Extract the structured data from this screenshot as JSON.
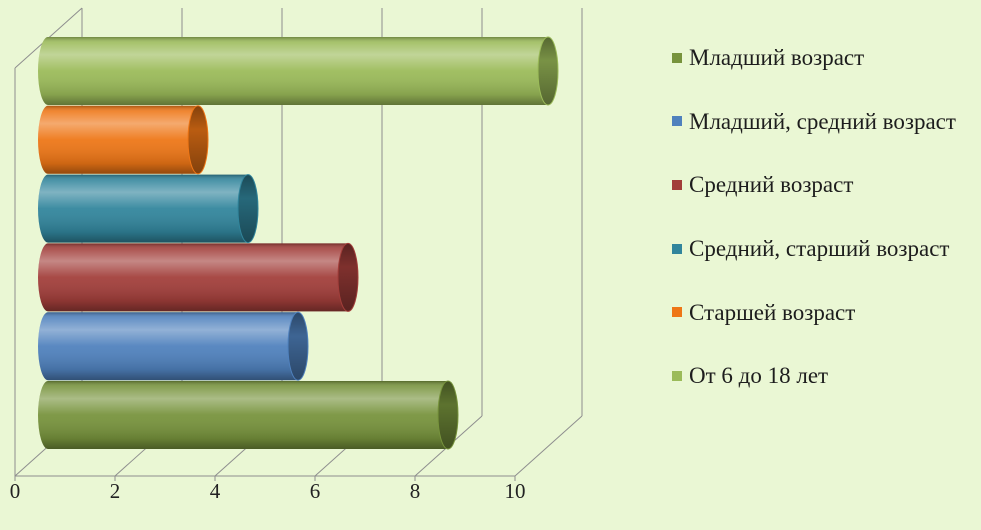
{
  "chart_data": {
    "type": "bar",
    "orientation": "horizontal",
    "series": [
      {
        "name": "Младший возраст",
        "values": [
          8
        ],
        "color": "#77933c"
      },
      {
        "name": "Младший, средний возраст",
        "values": [
          5
        ],
        "color": "#4f81bd"
      },
      {
        "name": "Средний возраст",
        "values": [
          6
        ],
        "color": "#a23e3a"
      },
      {
        "name": "Средний, старший возраст",
        "values": [
          4
        ],
        "color": "#31859c"
      },
      {
        "name": "Старшей возраст",
        "values": [
          3
        ],
        "color": "#ee7616"
      },
      {
        "name": "От 6 до 18 лет",
        "values": [
          10
        ],
        "color": "#9bbb59"
      }
    ],
    "xlim": [
      0,
      10
    ],
    "x_ticks": [
      0,
      2,
      4,
      6,
      8,
      10
    ],
    "grid": true,
    "legend_position": "right"
  },
  "colors": {
    "background": "#eaf7d4",
    "gridline": "#8e8e8e"
  }
}
